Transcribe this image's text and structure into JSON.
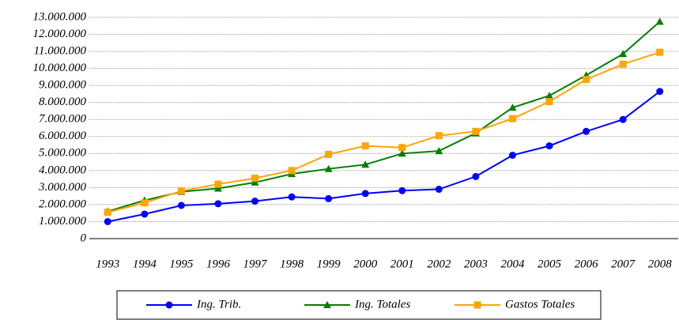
{
  "chart_data": {
    "type": "line",
    "categories": [
      "1993",
      "1994",
      "1995",
      "1996",
      "1997",
      "1998",
      "1999",
      "2000",
      "2001",
      "2002",
      "2003",
      "2004",
      "2005",
      "2006",
      "2007",
      "2008"
    ],
    "series": [
      {
        "name": "Ing. Trib.",
        "color": "#0000ff",
        "marker": "circle",
        "values": [
          1000000,
          1440000,
          1950000,
          2050000,
          2200000,
          2450000,
          2350000,
          2650000,
          2820000,
          2900000,
          3650000,
          4900000,
          5450000,
          6300000,
          7000000,
          8650000
        ]
      },
      {
        "name": "Ing. Totales",
        "color": "#008000",
        "marker": "triangle",
        "values": [
          1600000,
          2250000,
          2750000,
          2950000,
          3300000,
          3800000,
          4100000,
          4350000,
          5000000,
          5150000,
          6200000,
          7700000,
          8400000,
          9600000,
          10850000,
          12750000
        ]
      },
      {
        "name": "Gastos Totales",
        "color": "#ffa500",
        "marker": "square",
        "values": [
          1550000,
          2100000,
          2800000,
          3200000,
          3550000,
          4000000,
          4950000,
          5450000,
          5350000,
          6050000,
          6300000,
          7050000,
          8050000,
          9350000,
          10250000,
          10950000
        ]
      }
    ],
    "ylim": [
      0,
      13000000
    ],
    "yticks": [
      0,
      {
        "value": 1000000,
        "label": "1.000.000"
      },
      {
        "value": 2000000,
        "label": "2.000.000"
      },
      {
        "value": 3000000,
        "label": "3.000.000"
      },
      {
        "value": 4000000,
        "label": "4.000.000"
      },
      {
        "value": 5000000,
        "label": "5.000.000"
      },
      {
        "value": 6000000,
        "label": "6.000.000"
      },
      {
        "value": 7000000,
        "label": "7.000.000"
      },
      {
        "value": 8000000,
        "label": "8.000.000"
      },
      {
        "value": 9000000,
        "label": "9.000.000"
      },
      {
        "value": 10000000,
        "label": "10.000.000"
      },
      {
        "value": 11000000,
        "label": "11.000.000"
      },
      {
        "value": 12000000,
        "label": "12.000.000"
      },
      {
        "value": 13000000,
        "label": "13.000.000"
      }
    ],
    "grid": true,
    "legend": "bottom"
  }
}
